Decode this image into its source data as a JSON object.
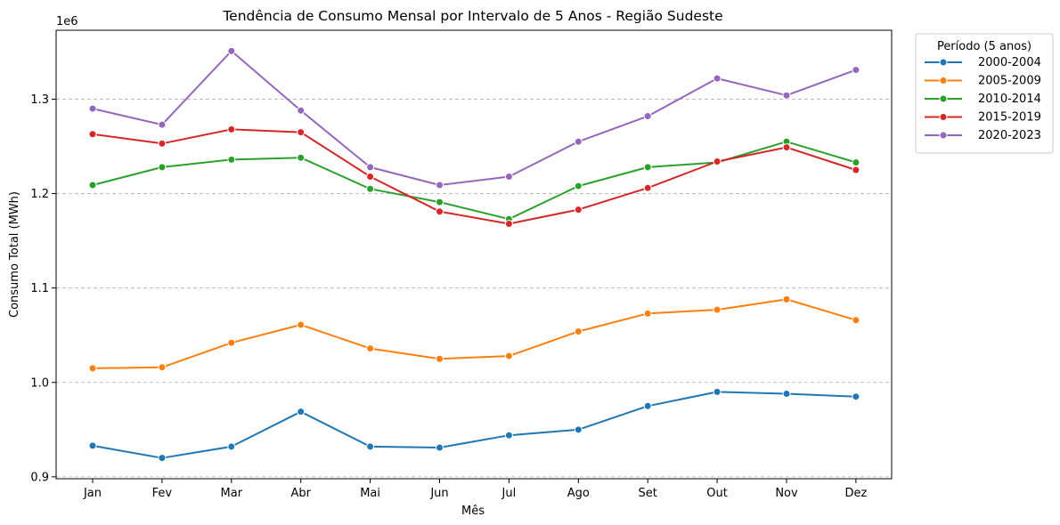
{
  "chart_data": {
    "type": "line",
    "title": "Tendência de Consumo Mensal por Intervalo de 5 Anos - Região Sudeste",
    "xlabel": "Mês",
    "ylabel": "Consumo Total (MWh)",
    "y_offset_text": "1e6",
    "categories": [
      "Jan",
      "Fev",
      "Mar",
      "Abr",
      "Mai",
      "Jun",
      "Jul",
      "Ago",
      "Set",
      "Out",
      "Nov",
      "Dez"
    ],
    "ylim": [
      0.898,
      1.373
    ],
    "yticks": [
      0.9,
      1.0,
      1.1,
      1.2,
      1.3
    ],
    "ytick_labels": [
      "0.9",
      "1.0",
      "1.1",
      "1.2",
      "1.3"
    ],
    "grid": "y-dashed",
    "legend": {
      "title": "Período (5 anos)",
      "placement": "outside-top-right"
    },
    "series": [
      {
        "name": "2000-2004",
        "color": "#1f77b4",
        "values": [
          0.933,
          0.92,
          0.932,
          0.969,
          0.932,
          0.931,
          0.944,
          0.95,
          0.975,
          0.99,
          0.988,
          0.985
        ]
      },
      {
        "name": "2005-2009",
        "color": "#ff7f0e",
        "values": [
          1.015,
          1.016,
          1.042,
          1.061,
          1.036,
          1.025,
          1.028,
          1.054,
          1.073,
          1.077,
          1.088,
          1.066
        ]
      },
      {
        "name": "2010-2014",
        "color": "#2ca02c",
        "values": [
          1.209,
          1.228,
          1.236,
          1.238,
          1.205,
          1.191,
          1.173,
          1.208,
          1.228,
          1.233,
          1.255,
          1.233
        ]
      },
      {
        "name": "2015-2019",
        "color": "#d62728",
        "values": [
          1.263,
          1.253,
          1.268,
          1.265,
          1.218,
          1.181,
          1.168,
          1.183,
          1.206,
          1.234,
          1.249,
          1.225
        ]
      },
      {
        "name": "2020-2023",
        "color": "#9467bd",
        "values": [
          1.29,
          1.273,
          1.351,
          1.288,
          1.228,
          1.209,
          1.218,
          1.255,
          1.282,
          1.322,
          1.304,
          1.331
        ]
      }
    ]
  }
}
